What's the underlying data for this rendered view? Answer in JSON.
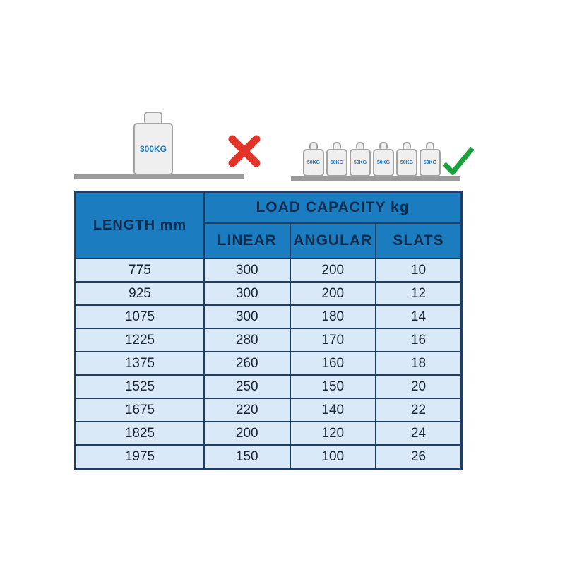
{
  "illustration": {
    "large_weight_label": "300KG",
    "small_weight_label": "50KG",
    "small_weight_count": 6,
    "incorrect_icon": "red-x",
    "correct_icon": "green-check"
  },
  "table": {
    "length_header": "LENGTH mm",
    "load_capacity_header": "LOAD CAPACITY kg",
    "sub_headers": [
      "LINEAR",
      "ANGULAR",
      "SLATS"
    ]
  },
  "chart_data": {
    "type": "table",
    "title": "LOAD CAPACITY kg",
    "columns": [
      "LENGTH mm",
      "LINEAR",
      "ANGULAR",
      "SLATS"
    ],
    "rows": [
      [
        "775",
        "300",
        "200",
        "10"
      ],
      [
        "925",
        "300",
        "200",
        "12"
      ],
      [
        "1075",
        "300",
        "180",
        "14"
      ],
      [
        "1225",
        "280",
        "170",
        "16"
      ],
      [
        "1375",
        "260",
        "160",
        "18"
      ],
      [
        "1525",
        "250",
        "150",
        "20"
      ],
      [
        "1675",
        "220",
        "140",
        "22"
      ],
      [
        "1825",
        "200",
        "120",
        "24"
      ],
      [
        "1975",
        "150",
        "100",
        "26"
      ]
    ]
  },
  "colors": {
    "header_bg": "#1b7dc0",
    "row_bg": "#d9e9f7",
    "table_border": "#1e3f63",
    "header_text": "#0d2b4d",
    "cell_text": "#1a2433",
    "weight_label": "#1878be",
    "x_red": "#e3342a",
    "check_green": "#1aa23c",
    "shelf_gray": "#9b9b9b"
  }
}
